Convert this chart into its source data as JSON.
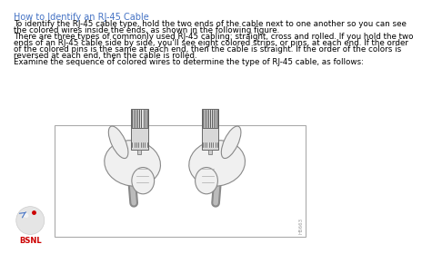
{
  "background_color": "#ffffff",
  "title": "How to Identify an RJ-45 Cable",
  "title_color": "#4472c4",
  "title_fontsize": 7.0,
  "body_text": [
    "To identify the RJ-45 cable type, hold the two ends of the cable next to one another so you can see",
    "the colored wires inside the ends, as shown in the following figure.",
    "There are three types of commonly used RJ-45 cabling: straight, cross and rolled. If you hold the two",
    "ends of an RJ-45 cable side by side, you'll see eight colored strips, or pins, at each end. If the order",
    "of the colored pins is the same at each end, then the cable is straight. If the order of the colors is",
    "reversed at each end, then the cable is rolled.",
    "Examine the sequence of colored wires to determine the type of RJ-45 cable, as follows:"
  ],
  "body_fontsize": 6.3,
  "body_color": "#000000",
  "watermark": "H5663",
  "bsnl_label": "BSNL",
  "bsnl_label_color": "#cc0000"
}
